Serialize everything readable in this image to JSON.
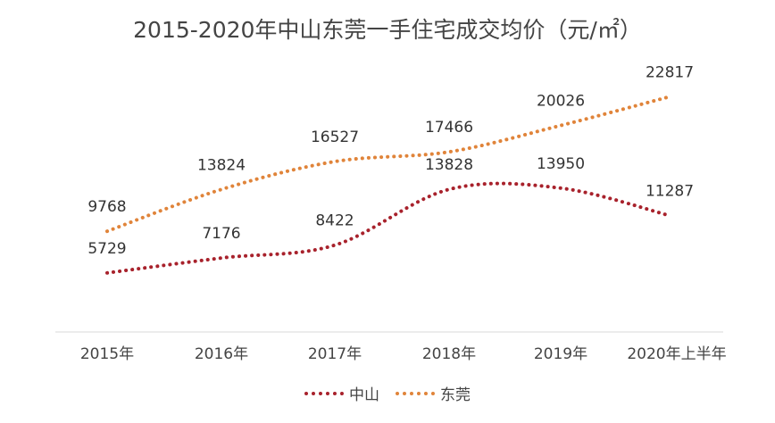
{
  "chart_data": {
    "type": "line",
    "title": "2015-2020年中山东莞一手住宅成交均价（元/㎡）",
    "categories": [
      "2015年",
      "2016年",
      "2017年",
      "2018年",
      "2019年",
      "2020年上半年"
    ],
    "series": [
      {
        "name": "中山",
        "color": "#a8222c",
        "values": [
          5729,
          7176,
          8422,
          13828,
          13950,
          11287
        ]
      },
      {
        "name": "东莞",
        "color": "#e0843a",
        "values": [
          9768,
          13824,
          16527,
          17466,
          20026,
          22817
        ]
      }
    ],
    "xlabel": "",
    "ylabel": "",
    "ylim": [
      0,
      27000
    ],
    "grid": false,
    "legend": "bottom",
    "smooth": true,
    "line_style": "dotted"
  }
}
